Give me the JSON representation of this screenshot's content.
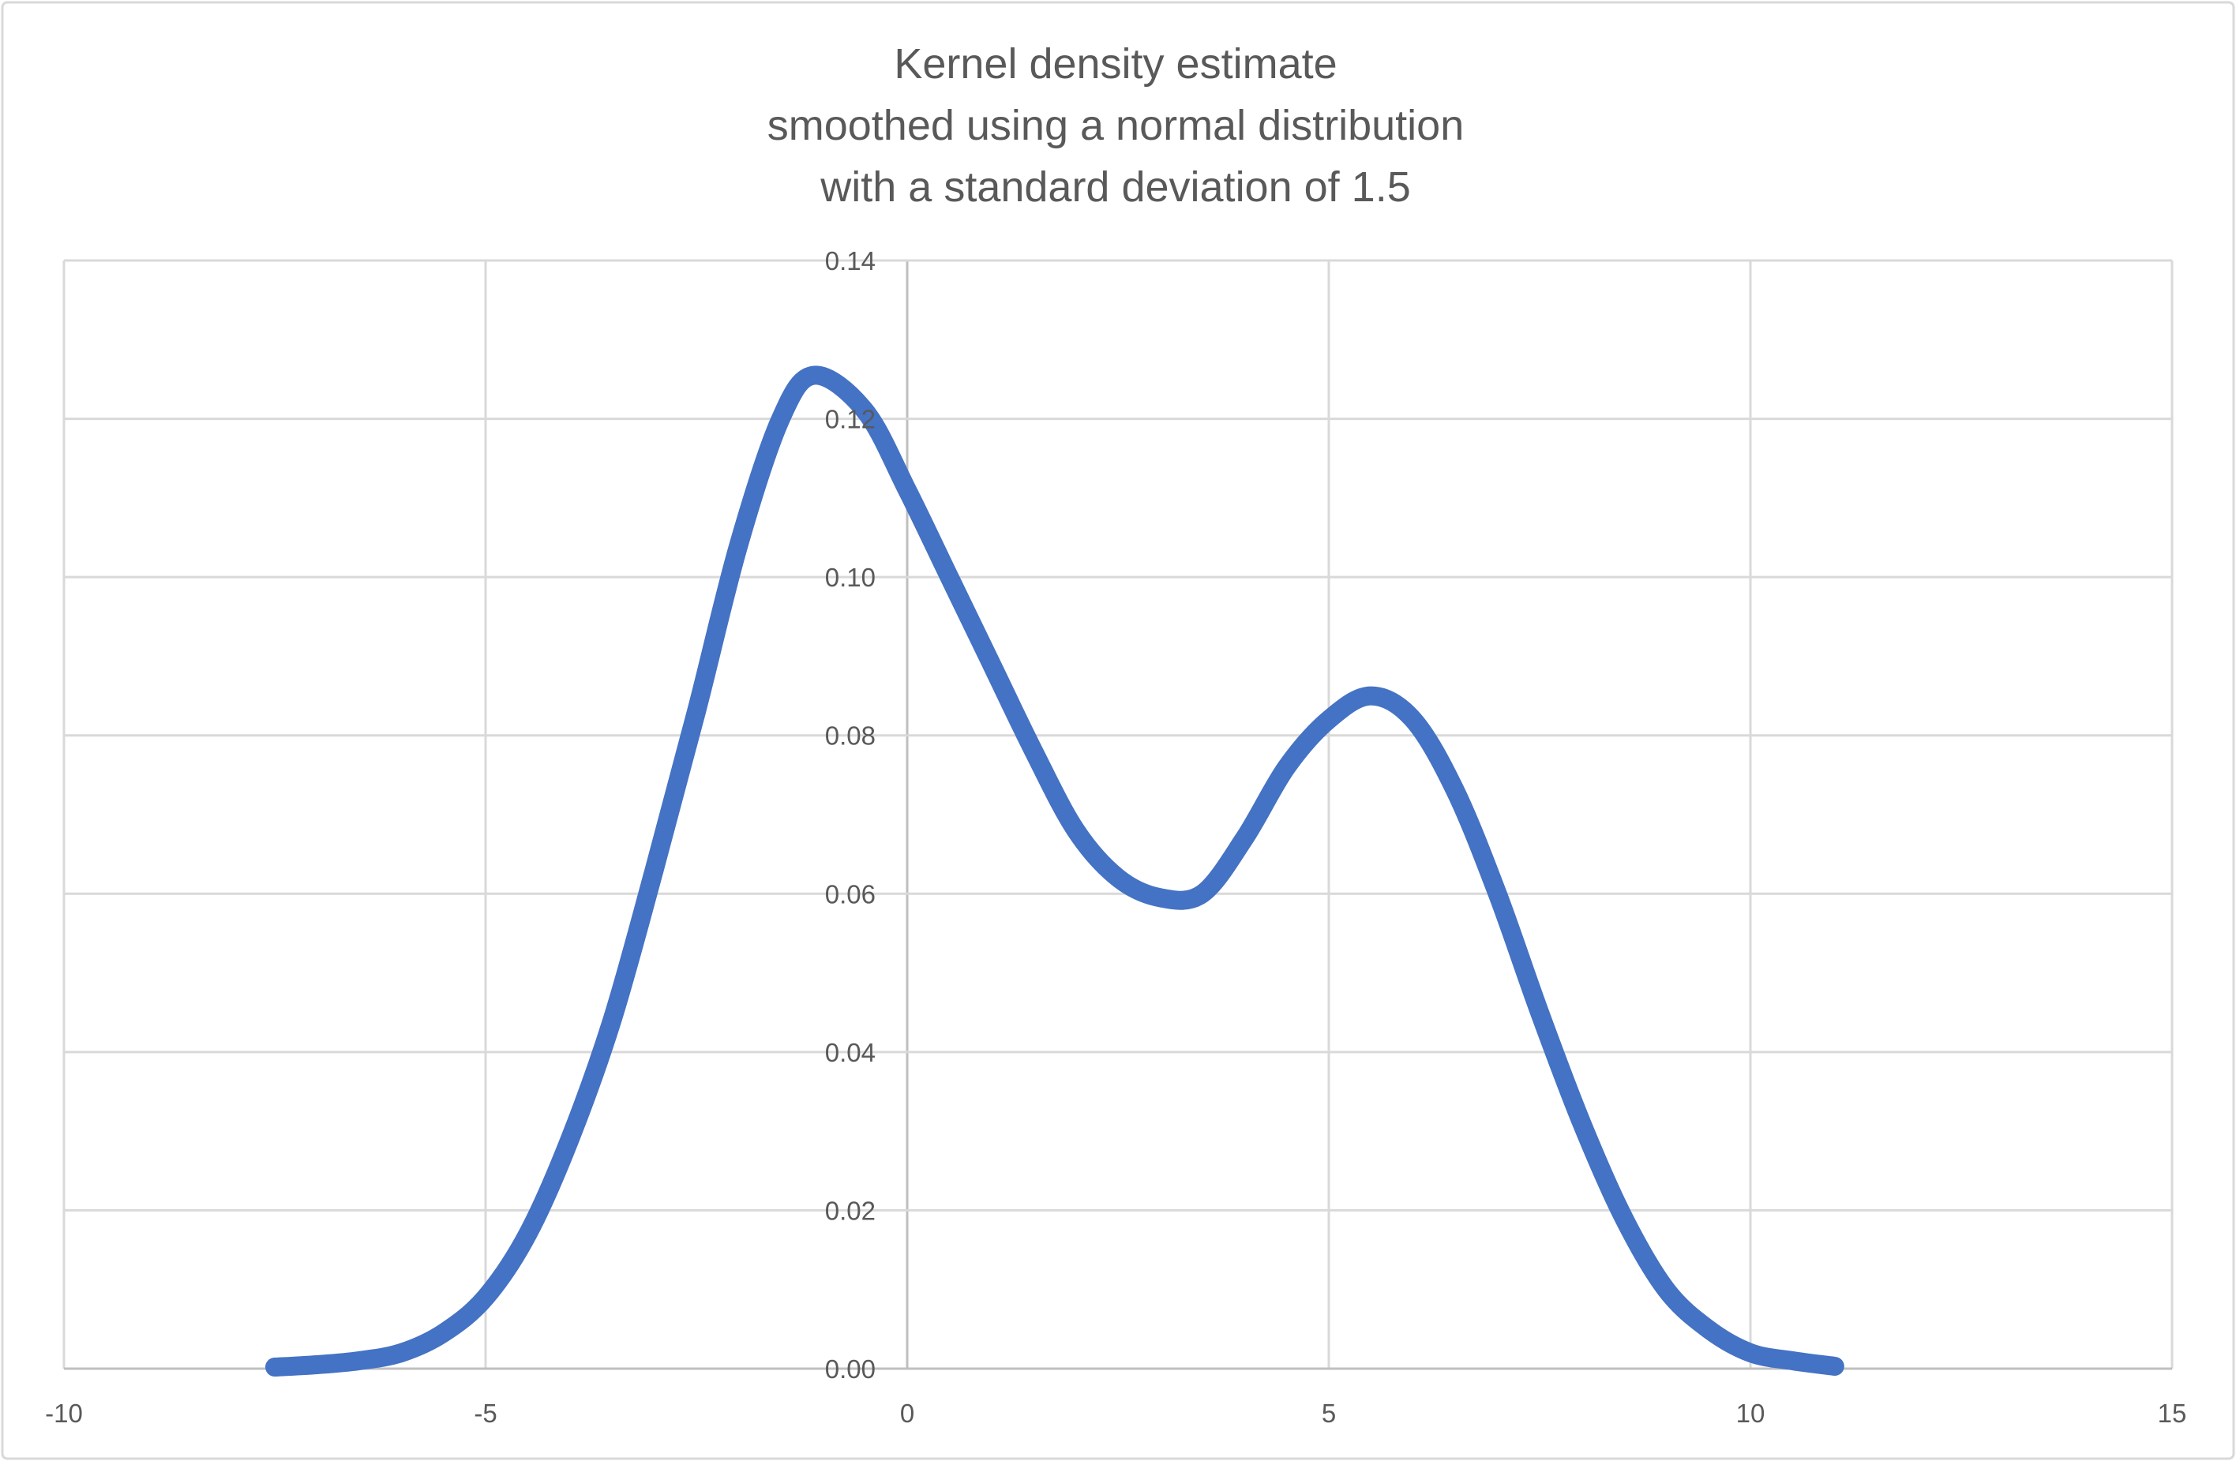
{
  "chart_data": {
    "type": "line",
    "title_lines": [
      "Kernel density estimate",
      "smoothed using a normal distribution",
      "with a standard deviation of 1.5"
    ],
    "xlabel": "",
    "ylabel": "",
    "xlim": [
      -10,
      15
    ],
    "ylim": [
      0,
      0.14
    ],
    "x_ticks": [
      "-10",
      "-5",
      "0",
      "5",
      "10",
      "15"
    ],
    "y_ticks": [
      "0.00",
      "0.02",
      "0.04",
      "0.06",
      "0.08",
      "0.10",
      "0.12",
      "0.14"
    ],
    "grid": true,
    "legend": "none",
    "colors": {
      "series": "#4472C4",
      "grid": "#D9D9D9",
      "text": "#595959"
    },
    "series": [
      {
        "x": [
          -7.5,
          -7,
          -6.5,
          -6,
          -5.5,
          -5,
          -4.5,
          -4,
          -3.5,
          -3,
          -2.5,
          -2,
          -1.5,
          -1.1,
          -0.5,
          0,
          0.5,
          1,
          1.5,
          2,
          2.5,
          3,
          3.5,
          4,
          4.5,
          5,
          5.5,
          6,
          6.5,
          7,
          7.5,
          8,
          8.5,
          9,
          9.5,
          10,
          10.5,
          11
        ],
        "y": [
          0.0002,
          0.0005,
          0.001,
          0.002,
          0.0045,
          0.009,
          0.017,
          0.029,
          0.044,
          0.063,
          0.083,
          0.104,
          0.12,
          0.1255,
          0.121,
          0.111,
          0.1,
          0.089,
          0.078,
          0.068,
          0.062,
          0.0595,
          0.06,
          0.067,
          0.076,
          0.082,
          0.085,
          0.082,
          0.073,
          0.06,
          0.045,
          0.031,
          0.019,
          0.01,
          0.005,
          0.002,
          0.001,
          0.0003
        ]
      }
    ]
  }
}
